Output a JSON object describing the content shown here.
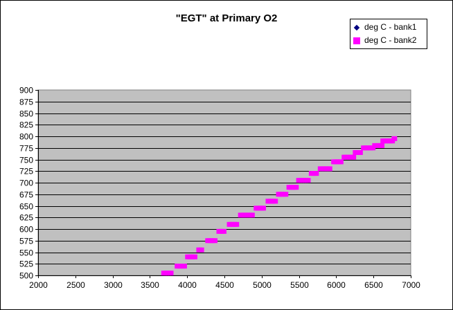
{
  "chart_data": {
    "type": "scatter",
    "title": "\"EGT\" at Primary O2",
    "xlabel": "",
    "ylabel": "",
    "xlim": [
      2000,
      7000
    ],
    "ylim": [
      500,
      900
    ],
    "x_ticks": [
      2000,
      2500,
      3000,
      3500,
      4000,
      4500,
      5000,
      5500,
      6000,
      6500,
      7000
    ],
    "y_ticks": [
      500,
      525,
      550,
      575,
      600,
      625,
      650,
      675,
      700,
      725,
      750,
      775,
      800,
      825,
      850,
      875,
      900
    ],
    "grid": "horizontal",
    "plot_background": "#c0c0c0",
    "legend_position": "top-right",
    "series": [
      {
        "name": "deg C - bank1",
        "color": "#000080",
        "marker": "diamond",
        "points": []
      },
      {
        "name": "deg C - bank2",
        "color": "#ff00ff",
        "marker": "square",
        "points": [
          [
            3690,
            505
          ],
          [
            3720,
            505
          ],
          [
            3750,
            505
          ],
          [
            3780,
            505
          ],
          [
            3870,
            520
          ],
          [
            3900,
            520
          ],
          [
            3930,
            520
          ],
          [
            3960,
            520
          ],
          [
            4010,
            540
          ],
          [
            4040,
            540
          ],
          [
            4070,
            540
          ],
          [
            4100,
            540
          ],
          [
            4160,
            555
          ],
          [
            4190,
            555
          ],
          [
            4280,
            575
          ],
          [
            4310,
            575
          ],
          [
            4340,
            575
          ],
          [
            4370,
            575
          ],
          [
            4430,
            595
          ],
          [
            4460,
            595
          ],
          [
            4490,
            595
          ],
          [
            4570,
            610
          ],
          [
            4600,
            610
          ],
          [
            4630,
            610
          ],
          [
            4660,
            610
          ],
          [
            4720,
            630
          ],
          [
            4750,
            630
          ],
          [
            4780,
            630
          ],
          [
            4810,
            630
          ],
          [
            4840,
            630
          ],
          [
            4870,
            630
          ],
          [
            4930,
            645
          ],
          [
            4960,
            645
          ],
          [
            4990,
            645
          ],
          [
            5020,
            645
          ],
          [
            5090,
            660
          ],
          [
            5120,
            660
          ],
          [
            5150,
            660
          ],
          [
            5180,
            660
          ],
          [
            5230,
            675
          ],
          [
            5260,
            675
          ],
          [
            5290,
            675
          ],
          [
            5320,
            675
          ],
          [
            5370,
            690
          ],
          [
            5400,
            690
          ],
          [
            5430,
            690
          ],
          [
            5460,
            690
          ],
          [
            5500,
            705
          ],
          [
            5530,
            705
          ],
          [
            5560,
            705
          ],
          [
            5590,
            705
          ],
          [
            5620,
            705
          ],
          [
            5670,
            720
          ],
          [
            5700,
            720
          ],
          [
            5730,
            720
          ],
          [
            5790,
            730
          ],
          [
            5820,
            730
          ],
          [
            5850,
            730
          ],
          [
            5880,
            730
          ],
          [
            5910,
            730
          ],
          [
            5970,
            745
          ],
          [
            6000,
            745
          ],
          [
            6030,
            745
          ],
          [
            6060,
            745
          ],
          [
            6110,
            755
          ],
          [
            6140,
            755
          ],
          [
            6170,
            755
          ],
          [
            6200,
            755
          ],
          [
            6230,
            755
          ],
          [
            6260,
            765
          ],
          [
            6290,
            765
          ],
          [
            6320,
            765
          ],
          [
            6370,
            775
          ],
          [
            6400,
            775
          ],
          [
            6430,
            775
          ],
          [
            6460,
            775
          ],
          [
            6490,
            775
          ],
          [
            6520,
            780
          ],
          [
            6550,
            780
          ],
          [
            6580,
            780
          ],
          [
            6610,
            780
          ],
          [
            6630,
            790
          ],
          [
            6660,
            790
          ],
          [
            6690,
            790
          ],
          [
            6720,
            790
          ],
          [
            6750,
            790
          ],
          [
            6780,
            795
          ]
        ]
      }
    ]
  }
}
